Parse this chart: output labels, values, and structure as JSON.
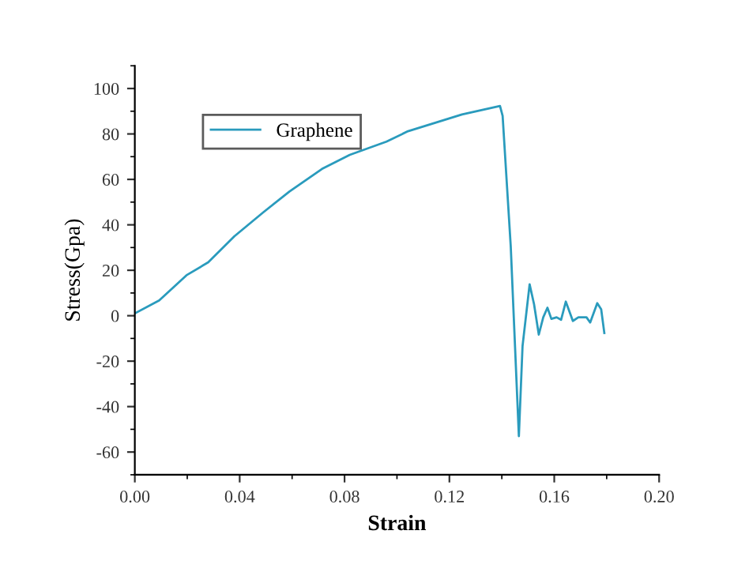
{
  "chart_data": {
    "type": "line",
    "xlabel": "Strain",
    "ylabel": "Stress(Gpa)",
    "xlim": [
      0,
      0.2
    ],
    "xticks": [
      {
        "value": 0,
        "label": "0.00"
      },
      {
        "value": 0.04,
        "label": "0.04"
      },
      {
        "value": 0.08,
        "label": "0.08"
      },
      {
        "value": 0.12,
        "label": "0.12"
      },
      {
        "value": 0.16,
        "label": "0.16"
      },
      {
        "value": 0.2,
        "label": "0.20"
      }
    ],
    "ylim": [
      -70,
      110
    ],
    "yticks": [
      -60,
      -40,
      -20,
      0,
      20,
      40,
      60,
      80,
      100
    ],
    "grid": false,
    "legend": "top left",
    "marker": "none",
    "line_style": "solid",
    "series": [
      {
        "name": "Graphene",
        "color": "#2a9bbd",
        "x": [
          0,
          0.0093,
          0.0197,
          0.028,
          0.038,
          0.049,
          0.059,
          0.0714,
          0.082,
          0.096,
          0.1042,
          0.1248,
          0.1393,
          0.1403,
          0.1434,
          0.1465,
          0.1479,
          0.1506,
          0.1523,
          0.1541,
          0.1558,
          0.1574,
          0.1589,
          0.1609,
          0.1626,
          0.1644,
          0.1671,
          0.1692,
          0.1723,
          0.1737,
          0.1764,
          0.1779,
          0.1791
        ],
        "values": [
          1,
          6.7,
          17.8,
          23.5,
          35,
          45.5,
          54.7,
          64.6,
          70.8,
          76.6,
          81.2,
          88.6,
          92.3,
          88,
          30.5,
          -53,
          -13.4,
          13.8,
          5,
          -8.3,
          -0.7,
          3.5,
          -1.4,
          -0.7,
          -1.8,
          6.2,
          -2.3,
          -0.7,
          -0.7,
          -3,
          5.5,
          2.8,
          -7.6
        ]
      }
    ]
  }
}
